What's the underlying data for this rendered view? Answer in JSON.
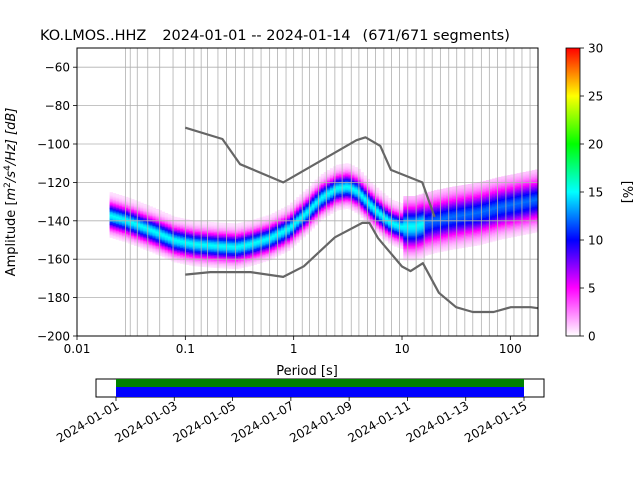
{
  "chart_data": {
    "type": "heatmap",
    "title": {
      "station": "KO.LMOS..HHZ",
      "range": "2024-01-01 -- 2024-01-14",
      "segments": "(671/671 segments)"
    },
    "xlabel": "Period [s]",
    "ylabel_prefix": "Amplitude [",
    "ylabel_unit_main": "m",
    "ylabel_sup1": "2",
    "ylabel_mid": "/s",
    "ylabel_sup2": "4",
    "ylabel_suffix": "/Hz] [dB]",
    "x_scale": "log",
    "xlim": [
      0.01,
      180
    ],
    "ylim": [
      -200,
      -50
    ],
    "x_ticks": [
      {
        "value": 0.01,
        "label": "0.01"
      },
      {
        "value": 0.1,
        "label": "0.1"
      },
      {
        "value": 1,
        "label": "1"
      },
      {
        "value": 10,
        "label": "10"
      },
      {
        "value": 100,
        "label": "100"
      }
    ],
    "y_ticks": [
      {
        "value": -60,
        "label": "−60"
      },
      {
        "value": -80,
        "label": "−80"
      },
      {
        "value": -100,
        "label": "−100"
      },
      {
        "value": -120,
        "label": "−120"
      },
      {
        "value": -140,
        "label": "−140"
      },
      {
        "value": -160,
        "label": "−160"
      },
      {
        "value": -180,
        "label": "−180"
      },
      {
        "value": -200,
        "label": "−200"
      }
    ],
    "grid": true,
    "period_gridlines": [
      0.028,
      0.031,
      0.036,
      0.045,
      0.058,
      0.077,
      0.1,
      0.12,
      0.14,
      0.16,
      0.2,
      0.24,
      0.29,
      0.35,
      0.42,
      0.5,
      0.6,
      0.71,
      0.85,
      1.0,
      1.2,
      1.4,
      1.7,
      2.0,
      2.4,
      2.8,
      3.4,
      4.0,
      4.8,
      5.7,
      6.8,
      8.0,
      9.5,
      11.3,
      13.5,
      16,
      19,
      22.6,
      27,
      32,
      38,
      45,
      54,
      64,
      76,
      91,
      108,
      128,
      152
    ],
    "noise_models": {
      "high": {
        "x": [
          0.1,
          0.22,
          0.32,
          0.8,
          3.8,
          4.6,
          6.3,
          7.9,
          15.4,
          20
        ],
        "y": [
          -91.5,
          -97.4,
          -110.5,
          -120,
          -98,
          -96.5,
          -101,
          -113.5,
          -120,
          -138
        ]
      },
      "low": {
        "x": [
          0.1,
          0.17,
          0.4,
          0.8,
          1.24,
          2.4,
          4.3,
          5.0,
          6.0,
          10,
          12,
          15.6,
          21.9,
          31.6,
          45,
          70,
          101,
          154,
          180
        ],
        "y": [
          -168,
          -166.7,
          -166.7,
          -169.2,
          -163.7,
          -148.6,
          -141.1,
          -141.1,
          -149,
          -163.8,
          -166.2,
          -162.1,
          -177.5,
          -185,
          -187.5,
          -187.5,
          -185,
          -185,
          -185.5
        ]
      }
    },
    "mode_curve": {
      "x": [
        0.02,
        0.03,
        0.05,
        0.08,
        0.12,
        0.2,
        0.3,
        0.4,
        0.6,
        0.9,
        1.3,
        1.8,
        2.5,
        3.2,
        4.0,
        5.0,
        6.5,
        8.0,
        10,
        13,
        20,
        30,
        50,
        80,
        120,
        180
      ],
      "y": [
        -137,
        -140,
        -145,
        -150,
        -152,
        -153,
        -153.5,
        -152,
        -149,
        -144,
        -136,
        -128,
        -123,
        -122,
        -125,
        -131,
        -137,
        -141,
        -143,
        -143,
        -140,
        -138,
        -136,
        -133,
        -131,
        -129
      ]
    },
    "colorbar": {
      "label": "[%]",
      "range": [
        0,
        30
      ],
      "ticks": [
        {
          "value": 0,
          "label": "0"
        },
        {
          "value": 5,
          "label": "5"
        },
        {
          "value": 10,
          "label": "10"
        },
        {
          "value": 15,
          "label": "15"
        },
        {
          "value": 20,
          "label": "20"
        },
        {
          "value": 25,
          "label": "25"
        },
        {
          "value": 30,
          "label": "30"
        }
      ],
      "stops": [
        "#ffffff",
        "#ff00ff",
        "#0000ff",
        "#00ffff",
        "#00ff00",
        "#ffff00",
        "#ff0000"
      ]
    },
    "timeline": {
      "ticks": [
        "2024-01-01",
        "2024-01-03",
        "2024-01-05",
        "2024-01-07",
        "2024-01-09",
        "2024-01-11",
        "2024-01-13",
        "2024-01-15"
      ],
      "data_span": [
        "2024-01-01",
        "2024-01-15"
      ],
      "colors": {
        "used": "#008000",
        "available": "#0000ff"
      }
    },
    "colors": {
      "noise_model": "#666666",
      "grid": "#b0b0b0"
    }
  }
}
